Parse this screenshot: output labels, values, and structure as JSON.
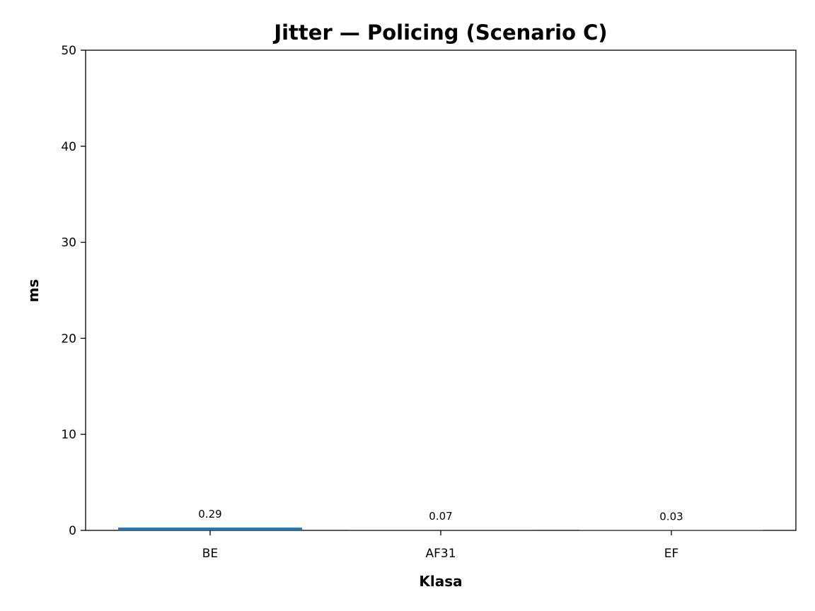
{
  "chart_data": {
    "type": "bar",
    "title": "Jitter — Policing (Scenario C)",
    "xlabel": "Klasa",
    "ylabel": "ms",
    "categories": [
      "BE",
      "AF31",
      "EF"
    ],
    "values": [
      0.29,
      0.07,
      0.03
    ],
    "value_labels": [
      "0.29",
      "0.07",
      "0.03"
    ],
    "ylim": [
      0,
      50
    ],
    "yticks": [
      0,
      10,
      20,
      30,
      40,
      50
    ],
    "grid": false,
    "legend": "none",
    "bar_color": "#1f77b4"
  }
}
